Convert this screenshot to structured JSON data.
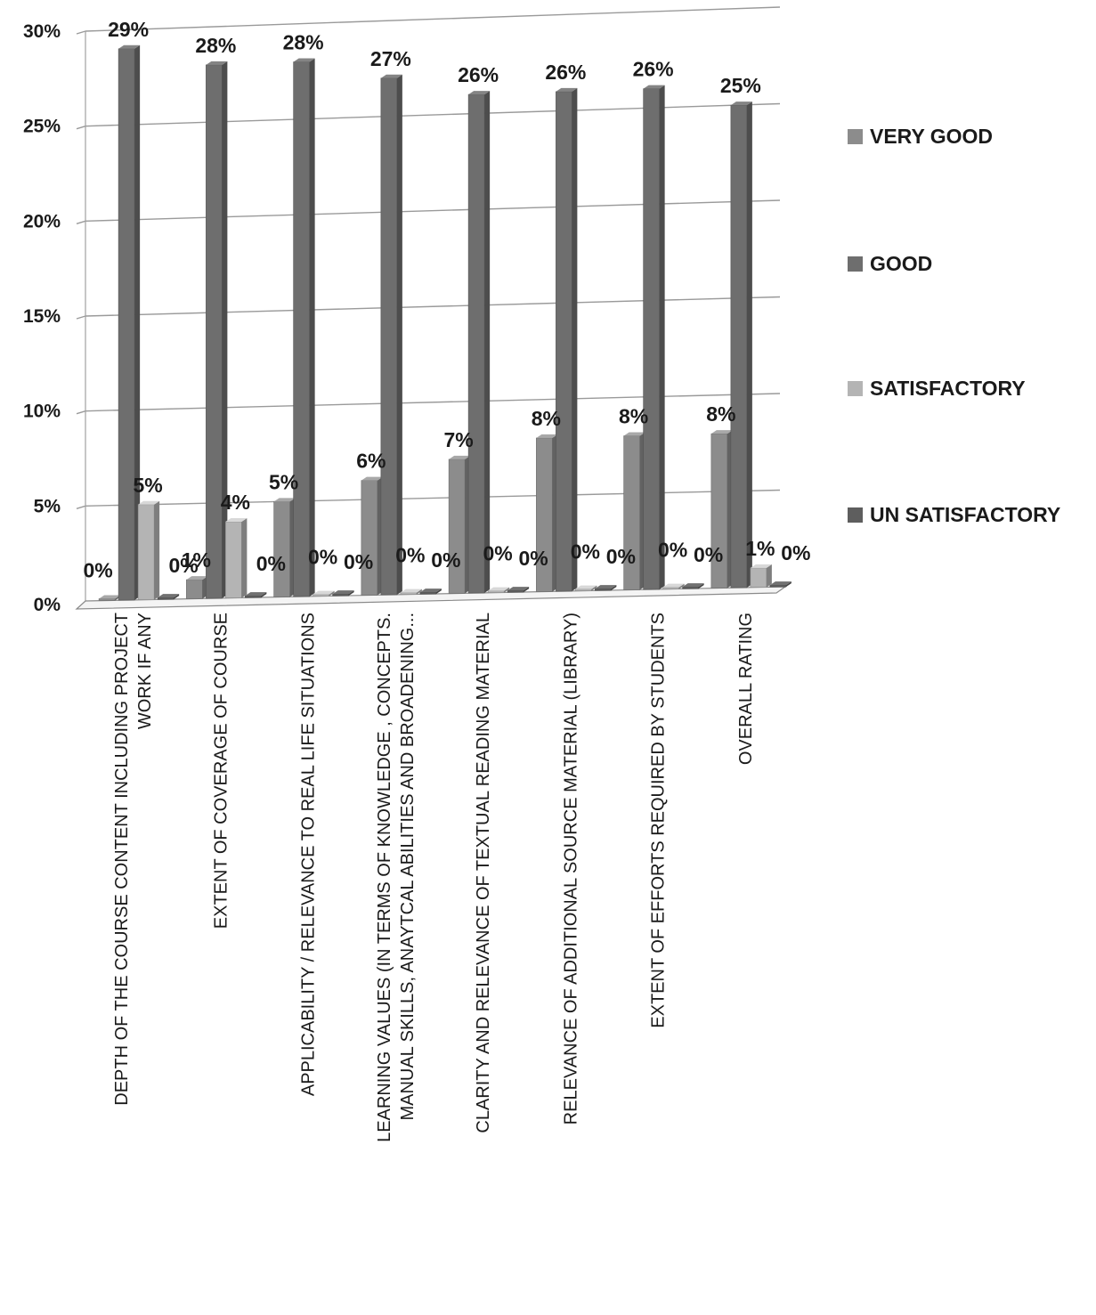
{
  "chart_data": {
    "type": "bar",
    "categories": [
      [
        "DEPTH OF THE COURSE CONTENT INCLUDING PROJECT",
        "WORK IF ANY"
      ],
      [
        "EXTENT OF COVERAGE OF COURSE"
      ],
      [
        "APPLICABILITY / RELEVANCE TO REAL LIFE SITUATIONS"
      ],
      [
        "LEARNING VALUES (IN TERMS OF KNOWLEDGE , CONCEPTS.",
        "MANUAL SKILLS, ANAYTCAL  ABILITIES AND BROADENING..."
      ],
      [
        "CLARITY AND RELEVANCE OF TEXTUAL READING MATERIAL"
      ],
      [
        "RELEVANCE OF ADDITIONAL SOURCE MATERIAL (LIBRARY)"
      ],
      [
        "EXTENT OF EFFORTS REQUIRED BY STUDENTS"
      ],
      [
        "OVERALL RATING"
      ]
    ],
    "series": [
      {
        "name": "VERY GOOD",
        "color": "#8c8c8c",
        "values": [
          0,
          1,
          5,
          6,
          7,
          8,
          8,
          8
        ],
        "labels": [
          "0%",
          "1%",
          "5%",
          "6%",
          "7%",
          "8%",
          "8%",
          "8%"
        ]
      },
      {
        "name": "GOOD",
        "color": "#6e6e6e",
        "values": [
          29,
          28,
          28,
          27,
          26,
          26,
          26,
          25
        ],
        "labels": [
          "29%",
          "28%",
          "28%",
          "27%",
          "26%",
          "26%",
          "26%",
          "25%"
        ]
      },
      {
        "name": "SATISFACTORY",
        "color": "#b4b4b4",
        "values": [
          5,
          4,
          0,
          0,
          0,
          0,
          0,
          1
        ],
        "labels": [
          "5%",
          "4%",
          "0%",
          "0%",
          "0%",
          "0%",
          "0%",
          "1%"
        ]
      },
      {
        "name": "UN SATISFACTORY",
        "color": "#5e5e5e",
        "values": [
          0,
          0,
          0,
          0,
          0,
          0,
          0,
          0
        ],
        "labels": [
          "0%",
          "0%",
          "0%",
          "0%",
          "0%",
          "0%",
          "0%",
          "0%"
        ]
      }
    ],
    "yticks": [
      "0%",
      "5%",
      "10%",
      "15%",
      "20%",
      "25%",
      "30%"
    ],
    "ylim": [
      0,
      30
    ],
    "grid": true,
    "legend_position": "right"
  }
}
